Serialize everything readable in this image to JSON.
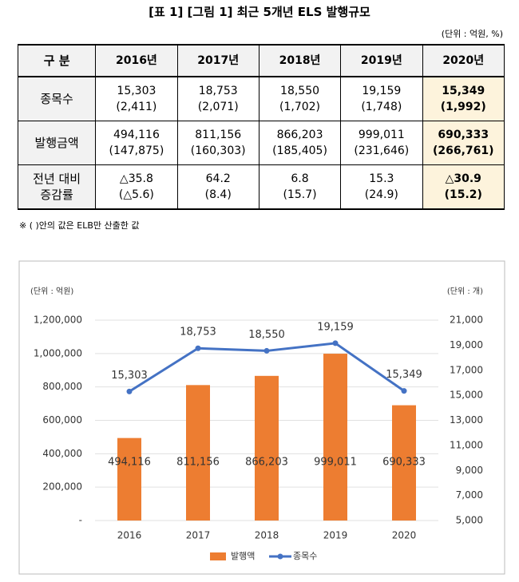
{
  "title": "[표 1] [그림 1] 최근 5개년 ELS 발행규모",
  "unit": "(단위 : 억원, %)",
  "table": {
    "header": [
      "구 분",
      "2016년",
      "2017년",
      "2018년",
      "2019년",
      "2020년"
    ],
    "rows": [
      [
        [
          "종목수"
        ],
        [
          "15,303",
          "(2,411)"
        ],
        [
          "18,753",
          "(2,071)"
        ],
        [
          "18,550",
          "(1,702)"
        ],
        [
          "19,159",
          "(1,748)"
        ],
        [
          "15,349",
          "(1,992)"
        ]
      ],
      [
        [
          "발행금액"
        ],
        [
          "494,116",
          "(147,875)"
        ],
        [
          "811,156",
          "(160,303)"
        ],
        [
          "866,203",
          "(185,405)"
        ],
        [
          "999,011",
          "(231,646)"
        ],
        [
          "690,333",
          "(266,761)"
        ]
      ],
      [
        [
          "전년 대비",
          "증감률"
        ],
        [
          "△35.8",
          "(△5.6)"
        ],
        [
          "64.2",
          "(8.4)"
        ],
        [
          "6.8",
          "(15.7)"
        ],
        [
          "15.3",
          "(24.9)"
        ],
        [
          "△30.9",
          "(15.2)"
        ]
      ]
    ]
  },
  "note": "※ (   )안의 값은 ELB만 산출한 값",
  "chart_data": {
    "type": "bar",
    "ylabel": "(단위 : 억원)",
    "y2label": "(단위 : 개)",
    "categories": [
      "2016",
      "2017",
      "2018",
      "2019",
      "2020"
    ],
    "series": [
      {
        "name": "발행액",
        "type": "bar",
        "color": "#ED7D31",
        "values": [
          494116,
          811156,
          866203,
          999011,
          690333
        ],
        "value_labels": [
          "494,116",
          "811,156",
          "866,203",
          "999,011",
          "690,333"
        ]
      },
      {
        "name": "종목수",
        "type": "line",
        "axis": "y2",
        "color": "#4472C4",
        "values": [
          15303,
          18753,
          18550,
          19159,
          15349
        ],
        "value_labels": [
          "15,303",
          "18,753",
          "18,550",
          "19,159",
          "15,349"
        ]
      }
    ],
    "ylim": [
      0,
      1200000
    ],
    "yticks": [
      {
        "value": 0,
        "label": "-"
      },
      {
        "value": 200000,
        "label": "200,000"
      },
      {
        "value": 400000,
        "label": "400,000"
      },
      {
        "value": 600000,
        "label": "600,000"
      },
      {
        "value": 800000,
        "label": "800,000"
      },
      {
        "value": 1000000,
        "label": "1,000,000"
      },
      {
        "value": 1200000,
        "label": "1,200,000"
      }
    ],
    "y2lim": [
      5000,
      21000
    ],
    "y2ticks": [
      {
        "value": 5000,
        "label": "5,000"
      },
      {
        "value": 7000,
        "label": "7,000"
      },
      {
        "value": 9000,
        "label": "9,000"
      },
      {
        "value": 11000,
        "label": "11,000"
      },
      {
        "value": 13000,
        "label": "13,000"
      },
      {
        "value": 15000,
        "label": "15,000"
      },
      {
        "value": 17000,
        "label": "17,000"
      },
      {
        "value": 19000,
        "label": "19,000"
      },
      {
        "value": 21000,
        "label": "21,000"
      }
    ],
    "legend": "bottom"
  }
}
